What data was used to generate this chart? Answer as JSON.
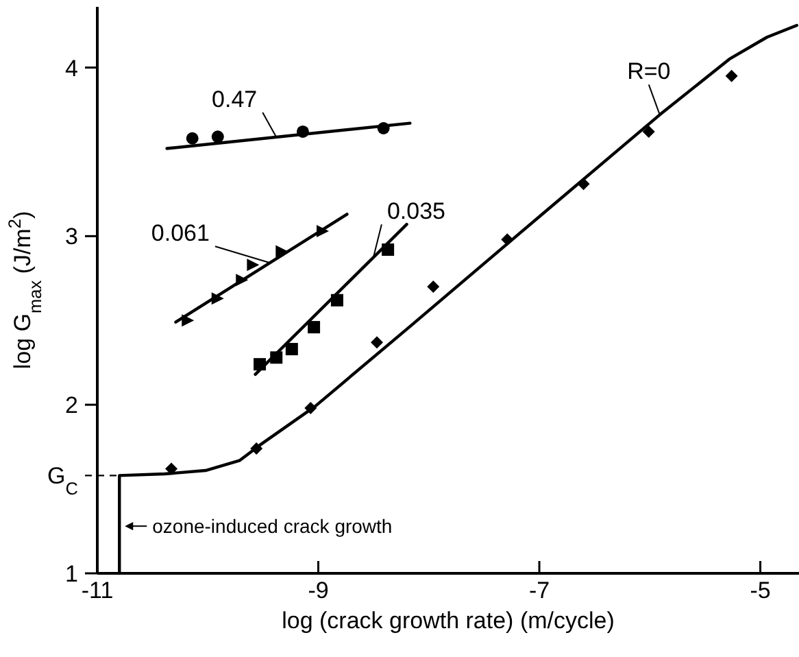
{
  "chart_data": {
    "type": "scatter",
    "xlabel": "log (crack growth rate) (m/cycle)",
    "ylabel": "log G$_{max}$ (J/m$^{2}$)",
    "xlim": [
      -11,
      -4.65
    ],
    "xticks": [
      -11,
      -9,
      -7,
      -5
    ],
    "ylim": [
      1,
      4.36
    ],
    "yticks": [
      1,
      2,
      3,
      4
    ],
    "grid": false,
    "ref_lines": [
      {
        "axis": "y",
        "value": 1.58,
        "label": "G$_{C}$",
        "line_style": "dashed",
        "color": "#000000"
      }
    ],
    "annotations": [
      {
        "text": "ozone-induced crack growth",
        "x": -10.8,
        "y": 1.28
      }
    ],
    "series": [
      {
        "marker": "circle",
        "color": "#000000",
        "x": [
          -10.14,
          -9.91,
          -9.14,
          -8.41
        ],
        "values": [
          3.58,
          3.59,
          3.62,
          3.64
        ]
      },
      {
        "type": "line",
        "name": "0.47",
        "marker": "none",
        "color": "#000000",
        "x": [
          -10.37,
          -8.17
        ],
        "values": [
          3.52,
          3.67
        ]
      },
      {
        "marker": "triangle",
        "color": "#000000",
        "x": [
          -10.18,
          -9.91,
          -9.69,
          -9.59,
          -9.33,
          -8.96
        ],
        "values": [
          2.5,
          2.63,
          2.74,
          2.83,
          2.91,
          3.03
        ]
      },
      {
        "type": "line",
        "name": "0.061",
        "marker": "none",
        "color": "#000000",
        "x": [
          -10.29,
          -8.74
        ],
        "values": [
          2.49,
          3.13
        ]
      },
      {
        "marker": "square",
        "color": "#000000",
        "x": [
          -9.53,
          -9.38,
          -9.24,
          -9.04,
          -8.83,
          -8.37
        ],
        "values": [
          2.24,
          2.28,
          2.33,
          2.46,
          2.62,
          2.92
        ]
      },
      {
        "type": "line",
        "name": "0.035",
        "marker": "none",
        "color": "#000000",
        "x": [
          -9.57,
          -8.2
        ],
        "values": [
          2.18,
          3.07
        ]
      },
      {
        "marker": "diamond",
        "color": "#000000",
        "x": [
          -10.33,
          -9.56,
          -9.07,
          -8.47,
          -7.96,
          -7.29,
          -6.6,
          -6.01,
          -5.26
        ],
        "values": [
          1.62,
          1.74,
          1.98,
          2.37,
          2.7,
          2.98,
          3.31,
          3.62,
          3.95
        ]
      },
      {
        "type": "line",
        "name": "R=0",
        "marker": "none",
        "color": "#000000",
        "x": [
          -10.8,
          -10.8,
          -10.39,
          -10.02,
          -9.71,
          -9.53,
          -9.03,
          -8.16,
          -6.92,
          -5.91,
          -5.28,
          -4.94,
          -4.67
        ],
        "values": [
          1,
          1.58,
          1.59,
          1.61,
          1.67,
          1.76,
          1.99,
          2.47,
          3.16,
          3.72,
          4.05,
          4.18,
          4.25
        ]
      }
    ]
  }
}
